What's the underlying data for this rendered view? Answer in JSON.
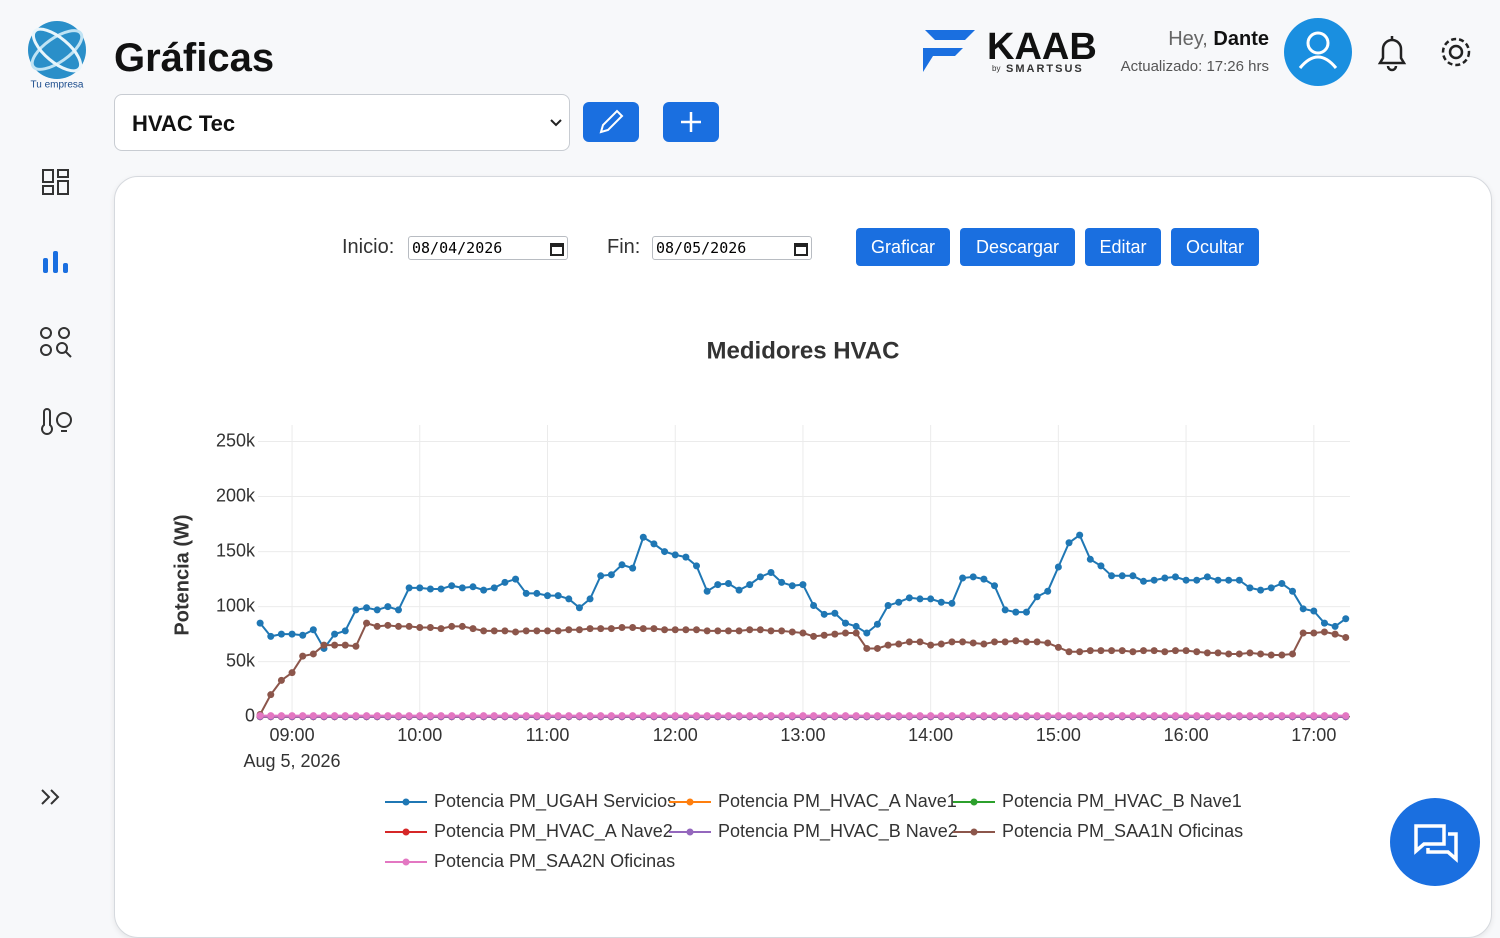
{
  "header": {
    "logo_caption": "Tu empresa",
    "title": "Gráficas",
    "brand": "KAAB",
    "brand_by": "by",
    "brand_sub": "SMARTSUS",
    "greeting": "Hey,",
    "user": "Dante",
    "updated": "Actualizado: 17:26 hrs"
  },
  "selector": {
    "value": "HVAC Tec"
  },
  "controls": {
    "start_label": "Inicio:",
    "start_date": "08/04/2026",
    "end_label": "Fin:",
    "end_date": "08/05/2026",
    "buttons": [
      "Graficar",
      "Descargar",
      "Editar",
      "Ocultar"
    ]
  },
  "chart_data": {
    "type": "line",
    "title": "Medidores HVAC",
    "y_label": "Potencia (W)",
    "x_sublabel": "Aug 5, 2026",
    "grid": true,
    "markers": true,
    "xlim": [
      "2026-08-05T08:44",
      "2026-08-05T17:17"
    ],
    "ylim": [
      -3000,
      265000
    ],
    "xticks": [
      {
        "value": "2026-08-05T09:00",
        "label": "09:00"
      },
      {
        "value": "2026-08-05T10:00",
        "label": "10:00"
      },
      {
        "value": "2026-08-05T11:00",
        "label": "11:00"
      },
      {
        "value": "2026-08-05T12:00",
        "label": "12:00"
      },
      {
        "value": "2026-08-05T13:00",
        "label": "13:00"
      },
      {
        "value": "2026-08-05T14:00",
        "label": "14:00"
      },
      {
        "value": "2026-08-05T15:00",
        "label": "15:00"
      },
      {
        "value": "2026-08-05T16:00",
        "label": "16:00"
      },
      {
        "value": "2026-08-05T17:00",
        "label": "17:00"
      }
    ],
    "yticks": [
      0,
      {
        "value": 50000,
        "label": "50k"
      },
      {
        "value": 100000,
        "label": "100k"
      },
      {
        "value": 150000,
        "label": "150k"
      },
      {
        "value": 200000,
        "label": "200k"
      },
      {
        "value": 250000,
        "label": "250k"
      }
    ],
    "x": [
      "2026-08-05T08:45",
      "2026-08-05T08:50",
      "2026-08-05T08:55",
      "2026-08-05T09:00",
      "2026-08-05T09:05",
      "2026-08-05T09:10",
      "2026-08-05T09:15",
      "2026-08-05T09:20",
      "2026-08-05T09:25",
      "2026-08-05T09:30",
      "2026-08-05T09:35",
      "2026-08-05T09:40",
      "2026-08-05T09:45",
      "2026-08-05T09:50",
      "2026-08-05T09:55",
      "2026-08-05T10:00",
      "2026-08-05T10:05",
      "2026-08-05T10:10",
      "2026-08-05T10:15",
      "2026-08-05T10:20",
      "2026-08-05T10:25",
      "2026-08-05T10:30",
      "2026-08-05T10:35",
      "2026-08-05T10:40",
      "2026-08-05T10:45",
      "2026-08-05T10:50",
      "2026-08-05T10:55",
      "2026-08-05T11:00",
      "2026-08-05T11:05",
      "2026-08-05T11:10",
      "2026-08-05T11:15",
      "2026-08-05T11:20",
      "2026-08-05T11:25",
      "2026-08-05T11:30",
      "2026-08-05T11:35",
      "2026-08-05T11:40",
      "2026-08-05T11:45",
      "2026-08-05T11:50",
      "2026-08-05T11:55",
      "2026-08-05T12:00",
      "2026-08-05T12:05",
      "2026-08-05T12:10",
      "2026-08-05T12:15",
      "2026-08-05T12:20",
      "2026-08-05T12:25",
      "2026-08-05T12:30",
      "2026-08-05T12:35",
      "2026-08-05T12:40",
      "2026-08-05T12:45",
      "2026-08-05T12:50",
      "2026-08-05T12:55",
      "2026-08-05T13:00",
      "2026-08-05T13:05",
      "2026-08-05T13:10",
      "2026-08-05T13:15",
      "2026-08-05T13:20",
      "2026-08-05T13:25",
      "2026-08-05T13:30",
      "2026-08-05T13:35",
      "2026-08-05T13:40",
      "2026-08-05T13:45",
      "2026-08-05T13:50",
      "2026-08-05T13:55",
      "2026-08-05T14:00",
      "2026-08-05T14:05",
      "2026-08-05T14:10",
      "2026-08-05T14:15",
      "2026-08-05T14:20",
      "2026-08-05T14:25",
      "2026-08-05T14:30",
      "2026-08-05T14:35",
      "2026-08-05T14:40",
      "2026-08-05T14:45",
      "2026-08-05T14:50",
      "2026-08-05T14:55",
      "2026-08-05T15:00",
      "2026-08-05T15:05",
      "2026-08-05T15:10",
      "2026-08-05T15:15",
      "2026-08-05T15:20",
      "2026-08-05T15:25",
      "2026-08-05T15:30",
      "2026-08-05T15:35",
      "2026-08-05T15:40",
      "2026-08-05T15:45",
      "2026-08-05T15:50",
      "2026-08-05T15:55",
      "2026-08-05T16:00",
      "2026-08-05T16:05",
      "2026-08-05T16:10",
      "2026-08-05T16:15",
      "2026-08-05T16:20",
      "2026-08-05T16:25",
      "2026-08-05T16:30",
      "2026-08-05T16:35",
      "2026-08-05T16:40",
      "2026-08-05T16:45",
      "2026-08-05T16:50",
      "2026-08-05T16:55",
      "2026-08-05T17:00",
      "2026-08-05T17:05",
      "2026-08-05T17:10",
      "2026-08-05T17:15"
    ],
    "series": [
      {
        "name": "Potencia PM_UGAH Servicios",
        "color": "#1f77b4",
        "values": [
          85000,
          73000,
          75000,
          75000,
          74000,
          79000,
          62000,
          75000,
          78000,
          97000,
          99000,
          97000,
          100000,
          97000,
          117000,
          117000,
          116000,
          116000,
          119000,
          117000,
          118000,
          115000,
          117000,
          122000,
          125000,
          112000,
          112000,
          110000,
          110000,
          107000,
          99000,
          107000,
          128000,
          129000,
          138000,
          135000,
          163000,
          157000,
          150000,
          147000,
          145000,
          137000,
          114000,
          120000,
          121000,
          115000,
          120000,
          127000,
          131000,
          122000,
          119000,
          120000,
          101000,
          93000,
          94000,
          85000,
          82000,
          76000,
          84000,
          101000,
          104000,
          108000,
          107000,
          107000,
          104000,
          103000,
          126000,
          127000,
          125000,
          119000,
          97000,
          95000,
          95000,
          109000,
          114000,
          136000,
          158000,
          165000,
          143000,
          137000,
          128000,
          128000,
          128000,
          123000,
          124000,
          126000,
          127000,
          124000,
          124000,
          127000,
          124000,
          124000,
          124000,
          117000,
          115000,
          117000,
          121000,
          114000,
          98000,
          96000,
          85000,
          82000,
          89000
        ]
      },
      {
        "name": "Potencia PM_HVAC_A Nave1",
        "color": "#ff7f0e",
        "values": [
          0,
          0,
          0,
          0,
          0,
          0,
          0,
          0,
          0,
          0,
          0,
          0,
          0,
          0,
          0,
          0,
          0,
          0,
          0,
          0,
          0,
          0,
          0,
          0,
          0,
          0,
          0,
          0,
          0,
          0,
          0,
          0,
          0,
          0,
          0,
          0,
          0,
          0,
          0,
          0,
          0,
          0,
          0,
          0,
          0,
          0,
          0,
          0,
          0,
          0,
          0,
          0,
          0,
          0,
          0,
          0,
          0,
          0,
          0,
          0,
          0,
          0,
          0,
          0,
          0,
          0,
          0,
          0,
          0,
          0,
          0,
          0,
          0,
          0,
          0,
          0,
          0,
          0,
          0,
          0,
          0,
          0,
          0,
          0,
          0,
          0,
          0,
          0,
          0,
          0,
          0,
          0,
          0,
          0,
          0,
          0,
          0,
          0,
          0,
          0,
          0,
          0,
          0
        ]
      },
      {
        "name": "Potencia PM_HVAC_B Nave1",
        "color": "#2ca02c",
        "values": [
          0,
          0,
          0,
          0,
          0,
          0,
          0,
          0,
          0,
          0,
          0,
          0,
          0,
          0,
          0,
          0,
          0,
          0,
          0,
          0,
          0,
          0,
          0,
          0,
          0,
          0,
          0,
          0,
          0,
          0,
          0,
          0,
          0,
          0,
          0,
          0,
          0,
          0,
          0,
          0,
          0,
          0,
          0,
          0,
          0,
          0,
          0,
          0,
          0,
          0,
          0,
          0,
          0,
          0,
          0,
          0,
          0,
          0,
          0,
          0,
          0,
          0,
          0,
          0,
          0,
          0,
          0,
          0,
          0,
          0,
          0,
          0,
          0,
          0,
          0,
          0,
          0,
          0,
          0,
          0,
          0,
          0,
          0,
          0,
          0,
          0,
          0,
          0,
          0,
          0,
          0,
          0,
          0,
          0,
          0,
          0,
          0,
          0,
          0,
          0,
          0,
          0,
          0
        ]
      },
      {
        "name": "Potencia PM_HVAC_A Nave2",
        "color": "#d62728",
        "values": [
          0,
          0,
          0,
          0,
          0,
          0,
          0,
          0,
          0,
          0,
          0,
          0,
          0,
          0,
          0,
          0,
          0,
          0,
          0,
          0,
          0,
          0,
          0,
          0,
          0,
          0,
          0,
          0,
          0,
          0,
          0,
          0,
          0,
          0,
          0,
          0,
          0,
          0,
          0,
          0,
          0,
          0,
          0,
          0,
          0,
          0,
          0,
          0,
          0,
          0,
          0,
          0,
          0,
          0,
          0,
          0,
          0,
          0,
          0,
          0,
          0,
          0,
          0,
          0,
          0,
          0,
          0,
          0,
          0,
          0,
          0,
          0,
          0,
          0,
          0,
          0,
          0,
          0,
          0,
          0,
          0,
          0,
          0,
          0,
          0,
          0,
          0,
          0,
          0,
          0,
          0,
          0,
          0,
          0,
          0,
          0,
          0,
          0,
          0,
          0,
          0,
          0,
          0
        ]
      },
      {
        "name": "Potencia PM_HVAC_B Nave2",
        "color": "#9467bd",
        "values": [
          0,
          0,
          0,
          0,
          0,
          0,
          0,
          0,
          0,
          0,
          0,
          0,
          0,
          0,
          0,
          0,
          0,
          0,
          0,
          0,
          0,
          0,
          0,
          0,
          0,
          0,
          0,
          0,
          0,
          0,
          0,
          0,
          0,
          0,
          0,
          0,
          0,
          0,
          0,
          0,
          0,
          0,
          0,
          0,
          0,
          0,
          0,
          0,
          0,
          0,
          0,
          0,
          0,
          0,
          0,
          0,
          0,
          0,
          0,
          0,
          0,
          0,
          0,
          0,
          0,
          0,
          0,
          0,
          0,
          0,
          0,
          0,
          0,
          0,
          0,
          0,
          0,
          0,
          0,
          0,
          0,
          0,
          0,
          0,
          0,
          0,
          0,
          0,
          0,
          0,
          0,
          0,
          0,
          0,
          0,
          0,
          0,
          0,
          0,
          0,
          0,
          0,
          0
        ]
      },
      {
        "name": "Potencia PM_SAA1N Oficinas",
        "color": "#8c564b",
        "values": [
          2000,
          20000,
          33000,
          40000,
          55000,
          57000,
          65000,
          65000,
          65000,
          64000,
          85000,
          82000,
          83000,
          82000,
          82000,
          81000,
          81000,
          80000,
          82000,
          82000,
          80000,
          78000,
          78000,
          78000,
          77000,
          78000,
          78000,
          78000,
          78000,
          79000,
          79000,
          80000,
          80000,
          80000,
          81000,
          81000,
          80000,
          80000,
          79000,
          79000,
          79000,
          79000,
          78000,
          78000,
          78000,
          78000,
          79000,
          79000,
          78000,
          78000,
          77000,
          76000,
          73000,
          74000,
          75000,
          76000,
          76000,
          62000,
          62000,
          65000,
          66000,
          68000,
          68000,
          65000,
          66000,
          68000,
          68000,
          67000,
          66000,
          68000,
          68000,
          69000,
          68000,
          68000,
          67000,
          63000,
          59000,
          59000,
          60000,
          60000,
          60000,
          60000,
          59000,
          60000,
          60000,
          59000,
          60000,
          60000,
          59000,
          58000,
          58000,
          57000,
          57000,
          58000,
          57000,
          56000,
          56000,
          57000,
          76000,
          76000,
          77000,
          75000,
          72000
        ]
      },
      {
        "name": "Potencia PM_SAA2N Oficinas",
        "color": "#e377c2",
        "values": [
          1000,
          1000,
          1000,
          1000,
          1000,
          1000,
          1000,
          1000,
          1000,
          1000,
          1000,
          1000,
          1000,
          1000,
          1000,
          1000,
          1000,
          1000,
          1000,
          1000,
          1000,
          1000,
          1000,
          1000,
          1000,
          1000,
          1000,
          1000,
          1000,
          1000,
          1000,
          1000,
          1000,
          1000,
          1000,
          1000,
          1000,
          1000,
          1000,
          1000,
          1000,
          1000,
          1000,
          1000,
          1000,
          1000,
          1000,
          1000,
          1000,
          1000,
          1000,
          1000,
          1000,
          1000,
          1000,
          1000,
          1000,
          1000,
          1000,
          1000,
          1000,
          1000,
          1000,
          1000,
          1000,
          1000,
          1000,
          1000,
          1000,
          1000,
          1000,
          1000,
          1000,
          1000,
          1000,
          1000,
          1000,
          1000,
          1000,
          1000,
          1000,
          1000,
          1000,
          1000,
          1000,
          1000,
          1000,
          1000,
          1000,
          1000,
          1000,
          1000,
          1000,
          1000,
          1000,
          1000,
          1000,
          1000,
          1000,
          1000,
          1000,
          1000,
          1000
        ]
      }
    ]
  }
}
